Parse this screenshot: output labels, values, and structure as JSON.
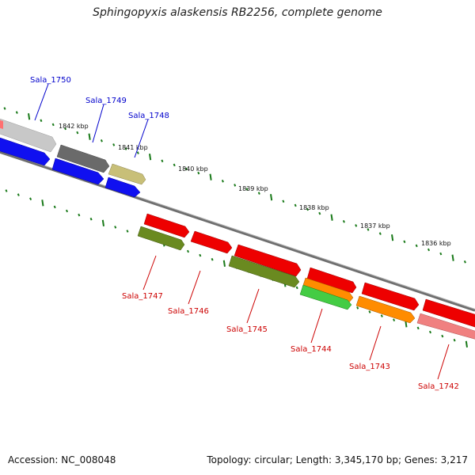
{
  "title": "Sphingopyxis alaskensis RB2256, complete genome",
  "footer": {
    "accession": "Accession: NC_008048",
    "topology": "Topology: circular; Length: 3,345,170 bp; Genes: 3,217"
  },
  "colors": {
    "upper_label": "#0000cc",
    "lower_label": "#cc0000",
    "tick": "#1a7a1a",
    "backbone": "#808080"
  },
  "kbp_labels": [
    {
      "text": "1842 kbp",
      "kbp": 1842
    },
    {
      "text": "1841 kbp",
      "kbp": 1841
    },
    {
      "text": "1840 kbp",
      "kbp": 1840
    },
    {
      "text": "1839 kbp",
      "kbp": 1839
    },
    {
      "text": "1838 kbp",
      "kbp": 1838
    },
    {
      "text": "1837 kbp",
      "kbp": 1837
    },
    {
      "text": "1836 kbp",
      "kbp": 1836
    }
  ],
  "gene_labels": [
    {
      "text": "Sala_1750",
      "strand": "upper"
    },
    {
      "text": "Sala_1749",
      "strand": "upper"
    },
    {
      "text": "Sala_1748",
      "strand": "upper"
    },
    {
      "text": "Sala_1747",
      "strand": "lower"
    },
    {
      "text": "Sala_1746",
      "strand": "lower"
    },
    {
      "text": "Sala_1745",
      "strand": "lower"
    },
    {
      "text": "Sala_1744",
      "strand": "lower"
    },
    {
      "text": "Sala_1743",
      "strand": "lower"
    },
    {
      "text": "Sala_1742",
      "strand": "lower"
    }
  ]
}
